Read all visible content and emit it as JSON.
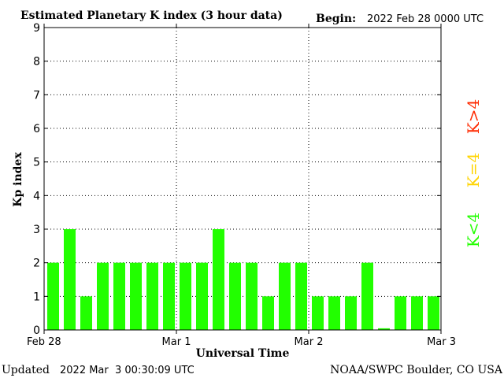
{
  "header": {
    "title": "Estimated Planetary K index (3 hour data)",
    "begin_label": "Begin:",
    "begin_value": "2022 Feb 28 0000 UTC"
  },
  "footer": {
    "updated_label": "Updated",
    "updated_value": "2022 Mar  3 00:30:09 UTC",
    "credit": "NOAA/SWPC Boulder, CO USA"
  },
  "legend": {
    "below": "K<4",
    "equal": "K=4",
    "above": "K>4"
  },
  "colors": {
    "below": "#22ff00",
    "equal": "#ffd400",
    "above": "#ff2a00"
  },
  "chart_data": {
    "type": "bar",
    "title": "Estimated Planetary K index (3 hour data)",
    "xlabel": "Universal Time",
    "ylabel": "Kp index",
    "ylim": [
      0,
      9
    ],
    "yticks": [
      0,
      1,
      2,
      3,
      4,
      5,
      6,
      7,
      8,
      9
    ],
    "xticks": [
      "Feb 28",
      "Mar 1",
      "Mar 2",
      "Mar 3"
    ],
    "grid": true,
    "bar_interval_hours": 3,
    "values": [
      2,
      3,
      1,
      2,
      2,
      2,
      2,
      2,
      2,
      2,
      3,
      2,
      2,
      1,
      2,
      2,
      1,
      1,
      1,
      2,
      0.05,
      1,
      1,
      1
    ]
  }
}
